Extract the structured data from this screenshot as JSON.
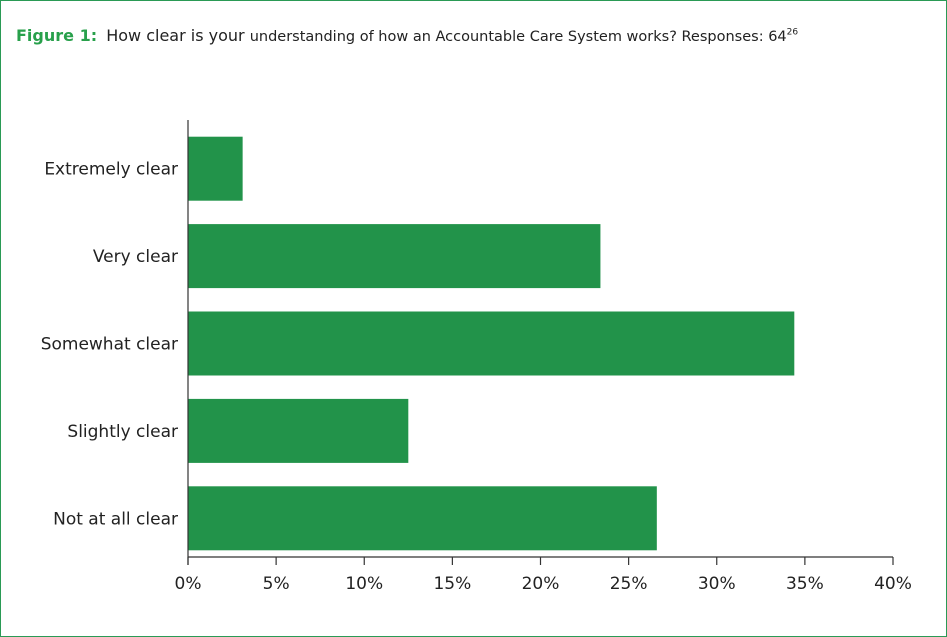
{
  "caption": {
    "label": "Figure 1:",
    "text_main": "How clear is your",
    "text_rest": "understanding of how an Accountable Care System works? Responses: 64",
    "superscript": "26"
  },
  "colors": {
    "bar": "#22934a",
    "accent": "#28a04b",
    "border": "#2a9a55"
  },
  "chart_data": {
    "type": "bar",
    "orientation": "horizontal",
    "categories": [
      "Extremely clear",
      "Very clear",
      "Somewhat clear",
      "Slightly clear",
      "Not at all clear"
    ],
    "values": [
      3.1,
      23.4,
      34.4,
      12.5,
      26.6
    ],
    "xlim": [
      0,
      40
    ],
    "xticks": [
      0,
      5,
      10,
      15,
      20,
      25,
      30,
      35,
      40
    ],
    "xtick_labels": [
      "0%",
      "5%",
      "10%",
      "15%",
      "20%",
      "25%",
      "30%",
      "35%",
      "40%"
    ],
    "grid": false,
    "legend": "none"
  }
}
